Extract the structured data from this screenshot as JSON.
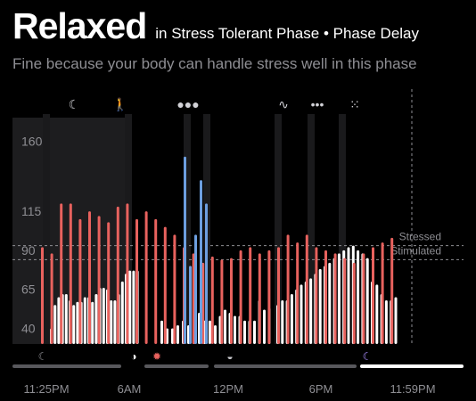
{
  "header": {
    "title": "Relaxed",
    "subtitle": "in Stress Tolerant Phase • Phase Delay",
    "description": "Fine because your body can handle stress well in this phase"
  },
  "colors": {
    "background": "#000000",
    "stress_bar": "#e8625e",
    "rest_bar": "#ffffff",
    "activity_bar": "#6d9fe0",
    "reference_line": "#8e8e93",
    "axis_text": "#8e8e93",
    "timeline_track": "#58585c",
    "timeline_active": "#ffffff"
  },
  "activity_icons": [
    {
      "name": "moon-icon",
      "glyph": "☾"
    },
    {
      "name": "walking-icon",
      "glyph": "🚶"
    },
    {
      "name": "group-walking-icon",
      "glyph": "●●●"
    },
    {
      "name": "heart-rate-icon",
      "glyph": "∿"
    },
    {
      "name": "dots-circle-icon",
      "glyph": "•••"
    },
    {
      "name": "grid-dots-icon",
      "glyph": "⁙"
    }
  ],
  "timeline_icons": [
    {
      "name": "moon-icon",
      "glyph": "☾"
    },
    {
      "name": "sunrise-icon",
      "glyph": "◑"
    },
    {
      "name": "sun-icon",
      "glyph": "✹"
    },
    {
      "name": "sunset-icon",
      "glyph": "◒"
    },
    {
      "name": "moon-icon",
      "glyph": "☾"
    }
  ],
  "reference_lines": [
    {
      "label": "Stressed",
      "value": 93
    },
    {
      "label": "Stimulated",
      "value": 84
    }
  ],
  "chart_data": {
    "type": "bar",
    "ylim": [
      30,
      175
    ],
    "y_ticks": [
      40,
      65,
      90,
      115,
      160
    ],
    "x_tick_labels": [
      "11:25PM",
      "6AM",
      "12PM",
      "6PM",
      "11:59PM"
    ],
    "series": [
      {
        "name": "",
        "color": "#ffffff",
        "values": [
          40,
          55,
          60,
          62,
          62,
          58,
          55,
          57,
          57,
          60,
          60,
          57,
          62,
          66,
          66,
          65,
          58,
          58,
          62,
          70,
          75,
          77,
          77,
          77,
          45,
          40,
          40,
          42,
          45,
          42,
          55,
          50,
          45,
          45,
          42,
          48,
          52,
          50,
          48,
          48,
          45,
          45,
          45,
          58,
          52,
          53,
          55,
          58,
          58,
          62,
          65,
          68,
          70,
          72,
          75,
          78,
          80,
          82,
          85,
          88,
          90,
          92,
          93,
          90,
          88,
          85,
          70,
          68,
          62,
          58,
          58,
          60
        ]
      },
      {
        "name": "",
        "color": "#e8625e",
        "values": [
          92,
          88,
          120,
          120,
          110,
          115,
          112,
          108,
          118,
          120,
          110,
          115,
          110,
          105,
          100,
          92,
          88,
          82,
          86,
          84,
          85,
          90,
          92,
          88,
          90,
          92,
          100,
          95,
          100,
          92,
          90,
          88,
          85,
          82,
          88,
          92,
          95,
          98
        ]
      },
      {
        "name": "",
        "color": "#6d9fe0",
        "values": [
          150,
          80,
          100,
          135,
          120
        ]
      }
    ]
  }
}
